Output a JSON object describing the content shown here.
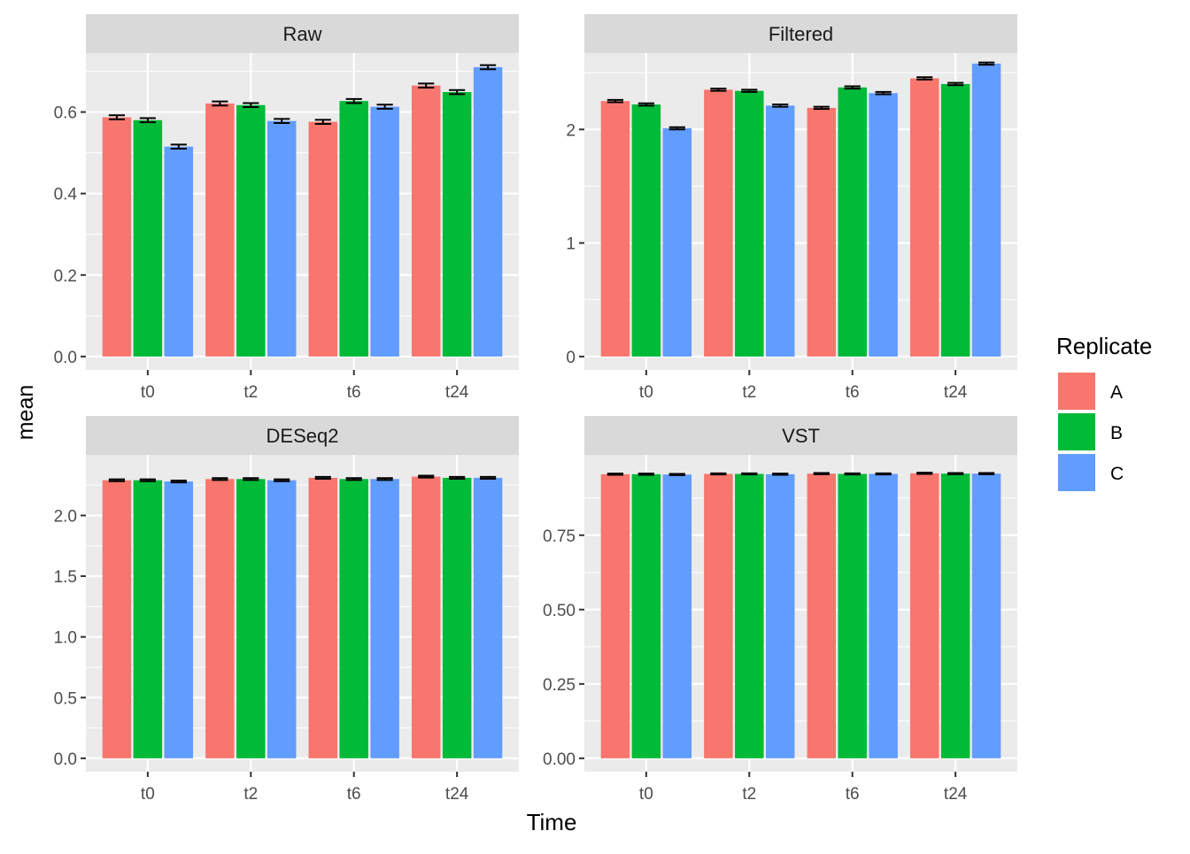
{
  "figure": {
    "xlabel": "Time",
    "ylabel": "mean"
  },
  "legend": {
    "title": "Replicate",
    "placement": "right",
    "items": [
      {
        "label": "A",
        "color": "#F8766D"
      },
      {
        "label": "B",
        "color": "#00BA38"
      },
      {
        "label": "C",
        "color": "#619CFF"
      }
    ]
  },
  "colors": {
    "panel_bg": "#EBEBEB",
    "strip_bg": "#D9D9D9",
    "grid": "#FFFFFF",
    "axis_text": "#4D4D4D",
    "errorbar": "#000000"
  },
  "chart_data": [
    {
      "type": "bar",
      "title": "Raw",
      "categories": [
        "t0",
        "t2",
        "t6",
        "t24"
      ],
      "ylim": [
        0,
        0.73
      ],
      "yticks": [
        0.0,
        0.2,
        0.4,
        0.6
      ],
      "ytick_labels": [
        "0.0",
        "0.2",
        "0.4",
        "0.6"
      ],
      "grid": true,
      "series": [
        {
          "name": "A",
          "values": [
            0.587,
            0.621,
            0.576,
            0.665
          ],
          "err": [
            0.005,
            0.005,
            0.005,
            0.005
          ]
        },
        {
          "name": "B",
          "values": [
            0.58,
            0.617,
            0.627,
            0.649
          ],
          "err": [
            0.005,
            0.005,
            0.005,
            0.005
          ]
        },
        {
          "name": "C",
          "values": [
            0.515,
            0.578,
            0.613,
            0.71
          ],
          "err": [
            0.005,
            0.005,
            0.005,
            0.005
          ]
        }
      ]
    },
    {
      "type": "bar",
      "title": "Filtered",
      "categories": [
        "t0",
        "t2",
        "t6",
        "t24"
      ],
      "ylim": [
        0,
        2.62
      ],
      "yticks": [
        0,
        1,
        2
      ],
      "ytick_labels": [
        "0",
        "1",
        "2"
      ],
      "grid": true,
      "series": [
        {
          "name": "A",
          "values": [
            2.25,
            2.35,
            2.19,
            2.45
          ],
          "err": [
            0.01,
            0.01,
            0.01,
            0.01
          ]
        },
        {
          "name": "B",
          "values": [
            2.22,
            2.34,
            2.37,
            2.4
          ],
          "err": [
            0.01,
            0.01,
            0.01,
            0.01
          ]
        },
        {
          "name": "C",
          "values": [
            2.01,
            2.21,
            2.32,
            2.58
          ],
          "err": [
            0.01,
            0.01,
            0.01,
            0.01
          ]
        }
      ]
    },
    {
      "type": "bar",
      "title": "DESeq2",
      "categories": [
        "t0",
        "t2",
        "t6",
        "t24"
      ],
      "ylim": [
        0,
        2.45
      ],
      "yticks": [
        0.0,
        0.5,
        1.0,
        1.5,
        2.0
      ],
      "ytick_labels": [
        "0.0",
        "0.5",
        "1.0",
        "1.5",
        "2.0"
      ],
      "grid": true,
      "series": [
        {
          "name": "A",
          "values": [
            2.29,
            2.3,
            2.31,
            2.32
          ],
          "err": [
            0.008,
            0.008,
            0.008,
            0.008
          ]
        },
        {
          "name": "B",
          "values": [
            2.29,
            2.3,
            2.3,
            2.31
          ],
          "err": [
            0.008,
            0.008,
            0.008,
            0.008
          ]
        },
        {
          "name": "C",
          "values": [
            2.28,
            2.29,
            2.3,
            2.31
          ],
          "err": [
            0.008,
            0.008,
            0.008,
            0.008
          ]
        }
      ]
    },
    {
      "type": "bar",
      "title": "VST",
      "categories": [
        "t0",
        "t2",
        "t6",
        "t24"
      ],
      "ylim": [
        0,
        1.0
      ],
      "yticks": [
        0.0,
        0.25,
        0.5,
        0.75
      ],
      "ytick_labels": [
        "0.00",
        "0.25",
        "0.50",
        "0.75"
      ],
      "grid": true,
      "series": [
        {
          "name": "A",
          "values": [
            0.955,
            0.956,
            0.957,
            0.958
          ],
          "err": [
            0.002,
            0.002,
            0.002,
            0.002
          ]
        },
        {
          "name": "B",
          "values": [
            0.955,
            0.956,
            0.956,
            0.957
          ],
          "err": [
            0.002,
            0.002,
            0.002,
            0.002
          ]
        },
        {
          "name": "C",
          "values": [
            0.954,
            0.955,
            0.956,
            0.957
          ],
          "err": [
            0.002,
            0.002,
            0.002,
            0.002
          ]
        }
      ]
    }
  ]
}
